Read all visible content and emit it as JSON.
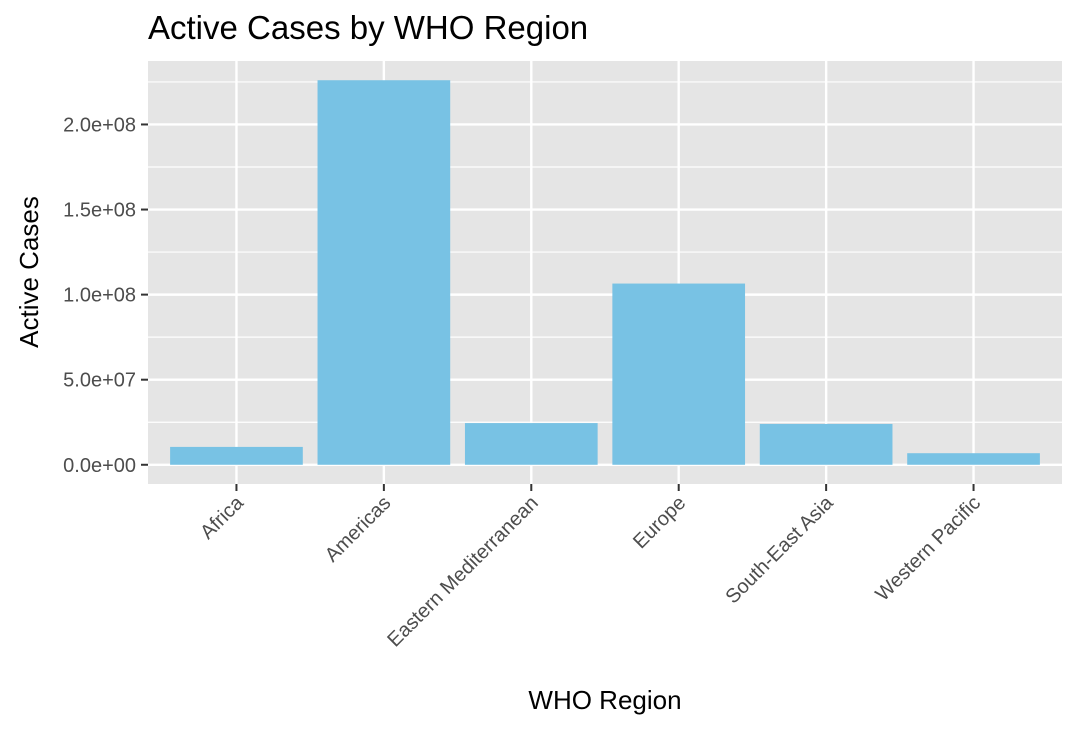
{
  "chart_data": {
    "type": "bar",
    "title": "Active Cases by WHO Region",
    "xlabel": "WHO Region",
    "ylabel": "Active Cases",
    "categories": [
      "Africa",
      "Americas",
      "Eastern Mediterranean",
      "Europe",
      "South-East Asia",
      "Western Pacific"
    ],
    "values": [
      10500000,
      226000000,
      24500000,
      106500000,
      24000000,
      6800000
    ],
    "y_ticks": [
      0,
      50000000,
      100000000,
      150000000,
      200000000
    ],
    "y_tick_labels": [
      "0.0e+00",
      "5.0e+07",
      "1.0e+08",
      "1.5e+08",
      "2.0e+08"
    ],
    "ylim": [
      -11300000,
      237300000
    ],
    "grid": true,
    "legend": "none",
    "colors": {
      "bar": "#78c2e4",
      "panel": "#e5e5e5",
      "grid": "#ffffff"
    }
  }
}
